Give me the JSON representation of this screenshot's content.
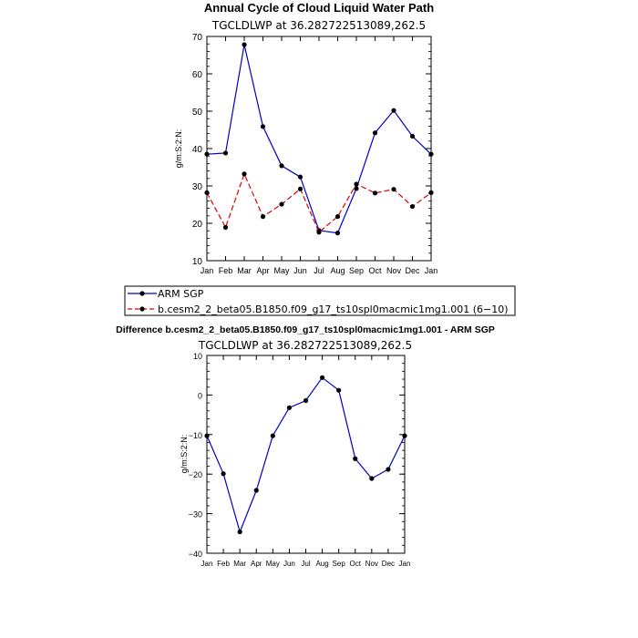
{
  "figure": {
    "title": "Annual Cycle of Cloud Liquid Water Path",
    "diff_title": "Difference b.cesm2_2_beta05.B1850.f09_g17_ts10spl0macmic1mg1.001 - ARM SGP"
  },
  "colors": {
    "obs": "#0000cc",
    "model": "#dd0000",
    "marker": "#000000",
    "axis": "#000000"
  },
  "chart_data": [
    {
      "type": "line",
      "title": "Annual Cycle of Cloud Liquid Water Path",
      "subtitle": "TGCLDLWP  at  36.282722513089,262.5",
      "xlabel": "",
      "ylabel": "g/m:S:2:N:",
      "categories": [
        "Jan",
        "Feb",
        "Mar",
        "Apr",
        "May",
        "Jun",
        "Jul",
        "Aug",
        "Sep",
        "Oct",
        "Nov",
        "Dec",
        "Jan"
      ],
      "ylim": [
        10,
        70
      ],
      "yticks": [
        10,
        20,
        30,
        40,
        50,
        60,
        70
      ],
      "grid": false,
      "legend": "bottom",
      "series": [
        {
          "name": "ARM SGP",
          "style": "solid",
          "values": [
            38.5,
            38.8,
            67.8,
            45.9,
            35.4,
            32.4,
            18.1,
            17.4,
            29.3,
            44.2,
            50.2,
            43.3,
            38.5
          ]
        },
        {
          "name": "b.cesm2_2_beta05.B1850.f09_g17_ts10spl0macmic1mg1.001 (6−10)",
          "style": "dashed",
          "values": [
            28.2,
            18.9,
            33.2,
            21.8,
            25.1,
            29.2,
            17.6,
            21.8,
            30.5,
            28.1,
            29.1,
            24.5,
            28.2
          ]
        }
      ]
    },
    {
      "type": "line",
      "title": "Difference b.cesm2_2_beta05.B1850.f09_g17_ts10spl0macmic1mg1.001 - ARM SGP",
      "subtitle": "TGCLDLWP  at  36.282722513089,262.5",
      "xlabel": "",
      "ylabel": "g/m:S:2:N:",
      "categories": [
        "Jan",
        "Feb",
        "Mar",
        "Apr",
        "May",
        "Jun",
        "Jul",
        "Aug",
        "Sep",
        "Oct",
        "Nov",
        "Dec",
        "Jan"
      ],
      "ylim": [
        -40,
        10
      ],
      "yticks": [
        10,
        0,
        -10,
        -20,
        -30,
        -40
      ],
      "grid": false,
      "series": [
        {
          "name": "",
          "style": "solid",
          "values": [
            -10.3,
            -19.9,
            -34.6,
            -24.1,
            -10.3,
            -3.2,
            -1.4,
            4.4,
            1.2,
            -16.1,
            -21.1,
            -18.8,
            -10.3
          ]
        }
      ]
    }
  ]
}
